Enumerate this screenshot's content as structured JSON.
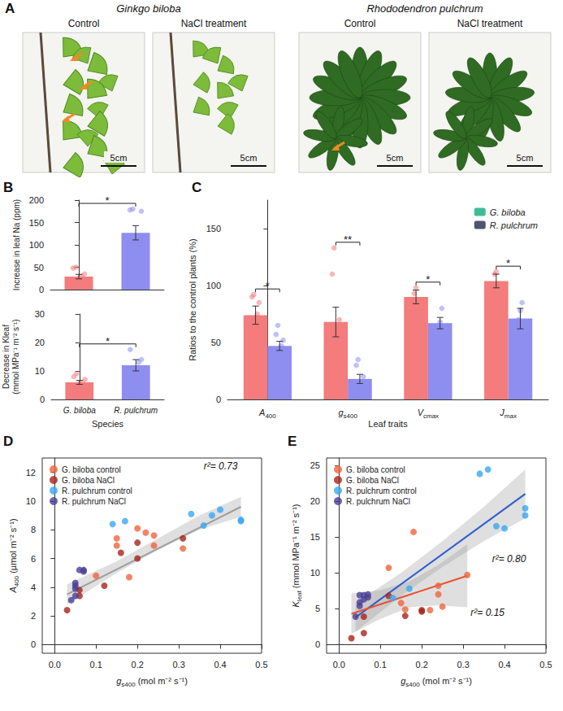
{
  "panel_a": {
    "label": "A",
    "groups": [
      {
        "title": "Ginkgo biloba",
        "photos": [
          {
            "caption": "Control",
            "scale": "5cm"
          },
          {
            "caption": "NaCl treatment",
            "scale": "5cm"
          }
        ]
      },
      {
        "title": "Rhododendron pulchrum",
        "photos": [
          {
            "caption": "Control",
            "scale": "5cm"
          },
          {
            "caption": "NaCl treatment",
            "scale": "5cm"
          }
        ]
      }
    ]
  },
  "chart_data": [
    {
      "label": "B",
      "type": "bar",
      "categories": [
        "G. biloba",
        "R. pulchrum"
      ],
      "tick_labels": "y",
      "y_label": "Increase in leaf Na (ppm)",
      "colors": [
        "#F47C7C",
        "#8E8EF0"
      ],
      "values": [
        29,
        127
      ],
      "errors": [
        5,
        16
      ],
      "points": [
        [
          10,
          20,
          25,
          30,
          35,
          48,
          50
        ],
        [
          90,
          100,
          110,
          120,
          175,
          178,
          180
        ]
      ],
      "significance": "*",
      "ylim": [
        0,
        200
      ],
      "yticks": [
        0,
        50,
        100,
        150,
        200
      ],
      "grid": false
    },
    {
      "type": "bar",
      "categories": [
        "G. biloba",
        "R. pulchrum"
      ],
      "x_label": "Species",
      "y_label": "Decrease in Kleaf (mmol MPa⁻¹ m⁻² s⁻¹)",
      "colors": [
        "#F47C7C",
        "#8E8EF0"
      ],
      "values": [
        6,
        12
      ],
      "errors": [
        0.7,
        2
      ],
      "points": [
        [
          4,
          5,
          5.5,
          6,
          7,
          8,
          9
        ],
        [
          1,
          10,
          11,
          13,
          14,
          17.5
        ]
      ],
      "significance": "*",
      "ylim": [
        0,
        30
      ],
      "yticks": [
        0,
        10,
        20,
        30
      ],
      "grid": false
    },
    {
      "label": "C",
      "type": "bar",
      "categories": [
        "A400",
        "gs400",
        "Vcmax",
        "Jmax"
      ],
      "x_label": "Leaf traits",
      "y_label": "Ratios to the control plants (%)",
      "ylim": [
        0,
        175
      ],
      "yticks": [
        0,
        50,
        100,
        150
      ],
      "legend": "upper right",
      "grid": false,
      "series": [
        {
          "name": "G. biloba",
          "color": "#F47C7C",
          "values": [
            74,
            68,
            90,
            104
          ],
          "errors": [
            8,
            13,
            6,
            6
          ],
          "points": [
            [
              35,
              50,
              72,
              75,
              85,
              90,
              92
            ],
            [
              17,
              30,
              50,
              58,
              70,
              110,
              133
            ],
            [
              80,
              93,
              98
            ],
            [
              95,
              110,
              112
            ]
          ]
        },
        {
          "name": "R. pulchrum",
          "color": "#8E8EF0",
          "values": [
            47,
            18,
            67,
            71
          ],
          "errors": [
            4,
            4,
            5,
            9
          ],
          "points": [
            [
              33,
              40,
              45,
              47,
              52,
              57,
              65
            ],
            [
              5,
              8,
              10,
              15,
              20,
              30,
              35
            ],
            [
              55,
              65,
              68,
              80
            ],
            [
              45,
              70,
              78,
              85
            ]
          ]
        }
      ],
      "significance": [
        "*",
        "**",
        "*",
        "*"
      ]
    },
    {
      "label": "D",
      "type": "scatter",
      "x_label": "gs400 (mol m⁻² s⁻¹)",
      "y_label": "A400 (µmol m⁻² s⁻¹)",
      "xlim": [
        -0.03,
        0.5
      ],
      "xticks": [
        {
          "value": 0,
          "label": "0.0"
        },
        0.1,
        0.2,
        0.3,
        0.4,
        0.5
      ],
      "ylim": [
        -0.6,
        13
      ],
      "yticks": [
        0,
        2,
        4,
        6,
        8,
        10,
        12
      ],
      "legend": "upper left",
      "grid": false,
      "series": [
        {
          "name": "G. biloba control",
          "color": "#F0643C",
          "x": [
            0.1,
            0.15,
            0.15,
            0.18,
            0.2,
            0.22,
            0.24,
            0.24,
            0.31
          ],
          "y": [
            4.8,
            6.9,
            7.4,
            4.7,
            8.1,
            7.8,
            7.6,
            6.9,
            6.7
          ]
        },
        {
          "name": "G. biloba NaCl",
          "color": "#A8231C",
          "x": [
            0.03,
            0.06,
            0.06,
            0.12,
            0.16,
            0.2,
            0.2,
            0.31
          ],
          "y": [
            2.4,
            3.4,
            3.8,
            4.1,
            6.4,
            6.0,
            7.1,
            7.4
          ]
        },
        {
          "name": "R. pulchrum control",
          "color": "#38A8F2",
          "x": [
            0.14,
            0.17,
            0.33,
            0.36,
            0.38,
            0.4,
            0.45,
            0.45
          ],
          "y": [
            8.4,
            8.6,
            9.1,
            8.3,
            9.0,
            9.4,
            8.7,
            8.6
          ]
        },
        {
          "name": "R. pulchrum NaCl",
          "color": "#4A3F96",
          "x": [
            0.04,
            0.05,
            0.05,
            0.05,
            0.05,
            0.06,
            0.07,
            0.07
          ],
          "y": [
            3.1,
            3.4,
            3.9,
            4.1,
            4.3,
            5.2,
            5.1,
            5.2
          ]
        }
      ],
      "fits": [
        {
          "color": "#9E9E9E",
          "x": [
            0.03,
            0.45
          ],
          "y": [
            3.5,
            9.6
          ],
          "band": {
            "x": [
              0.03,
              0.15,
              0.25,
              0.35,
              0.45
            ],
            "lower": [
              2.8,
              5.0,
              6.6,
              8.0,
              8.9
            ],
            "upper": [
              4.2,
              5.8,
              7.4,
              9.0,
              10.3
            ]
          },
          "annotation": "r²= 0.73"
        }
      ]
    },
    {
      "label": "E",
      "type": "scatter",
      "x_label": "gs400 (mol m⁻² s⁻¹)",
      "y_label": "Kleaf (mmol MPa⁻¹ m⁻² s⁻¹)",
      "xlim": [
        -0.03,
        0.5
      ],
      "xticks": [
        {
          "value": 0,
          "label": "0.0"
        },
        0.1,
        0.2,
        0.3,
        0.4,
        0.5
      ],
      "ylim": [
        -1.2,
        26
      ],
      "yticks": [
        0,
        5,
        10,
        15,
        20,
        25
      ],
      "legend": "upper left",
      "grid": false,
      "series": [
        {
          "name": "G. biloba control",
          "color": "#F0643C",
          "x": [
            0.12,
            0.15,
            0.16,
            0.18,
            0.22,
            0.24,
            0.24,
            0.25,
            0.31
          ],
          "y": [
            10.7,
            5.8,
            4.9,
            15.7,
            4.8,
            7.0,
            8.2,
            5.3,
            9.7
          ]
        },
        {
          "name": "G. biloba NaCl",
          "color": "#A8231C",
          "x": [
            0.03,
            0.06,
            0.06,
            0.12,
            0.16,
            0.2,
            0.2
          ],
          "y": [
            0.9,
            1.6,
            3.9,
            6.8,
            4.0,
            4.6,
            4.8
          ]
        },
        {
          "name": "R. pulchrum control",
          "color": "#38A8F2",
          "x": [
            0.13,
            0.17,
            0.34,
            0.36,
            0.38,
            0.4,
            0.45,
            0.45
          ],
          "y": [
            6.5,
            7.8,
            23.8,
            24.4,
            16.5,
            16.2,
            19.0,
            18.0
          ]
        },
        {
          "name": "R. pulchrum NaCl",
          "color": "#4A3F96",
          "x": [
            0.04,
            0.05,
            0.05,
            0.05,
            0.06,
            0.06,
            0.07,
            0.07
          ],
          "y": [
            3.9,
            5.4,
            5.9,
            6.9,
            6.3,
            6.9,
            6.6,
            7.0
          ]
        }
      ],
      "fits": [
        {
          "color": "#2F5BD3",
          "x": [
            0.04,
            0.45
          ],
          "y": [
            3.8,
            21.0
          ],
          "band": {
            "x": [
              0.04,
              0.15,
              0.25,
              0.35,
              0.45
            ],
            "lower": [
              1.8,
              6.8,
              10.8,
              14.4,
              17.6
            ],
            "upper": [
              5.8,
              10.0,
              14.4,
              19.2,
              24.4
            ]
          },
          "annotation": "r²= 0.80"
        },
        {
          "color": "#E8512E",
          "x": [
            0.03,
            0.31
          ],
          "y": [
            4.3,
            9.6
          ],
          "band": {
            "x": [
              0.03,
              0.1,
              0.17,
              0.24,
              0.31
            ],
            "lower": [
              1.5,
              3.6,
              5.2,
              5.5,
              5.2
            ],
            "upper": [
              7.1,
              7.6,
              8.8,
              11.1,
              14.0
            ]
          },
          "annotation": "r²= 0.15"
        }
      ]
    }
  ]
}
